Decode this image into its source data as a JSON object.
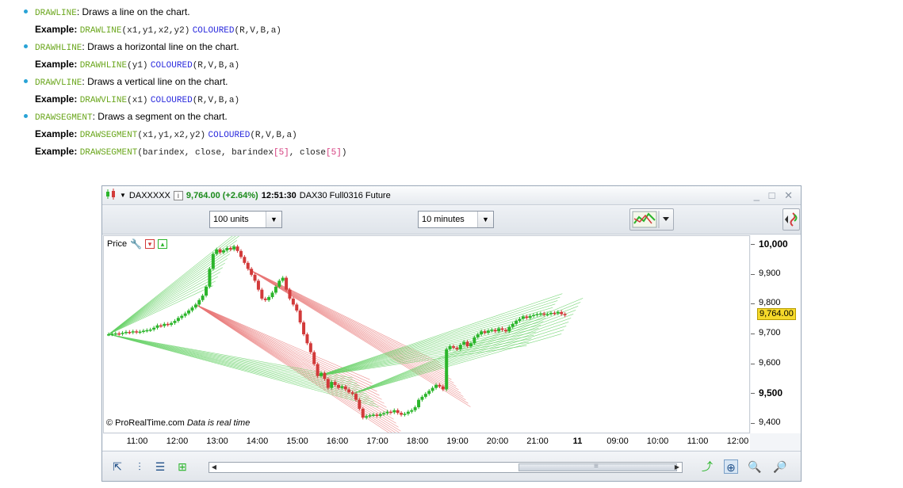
{
  "doc": {
    "items": [
      {
        "keyword": "DRAWLINE",
        "description": ": Draws a line on the chart.",
        "examples": [
          {
            "label": "Example:",
            "fn": "DRAWLINE",
            "args": "(x1,y1,x2,y2)",
            "color_fn": "COLOURED",
            "color_args": "(R,V,B,a)"
          }
        ]
      },
      {
        "keyword": "DRAWHLINE",
        "description": ": Draws a horizontal line on the chart.",
        "examples": [
          {
            "label": "Example:",
            "fn": "DRAWHLINE",
            "args": "(y1)",
            "color_fn": "COLOURED",
            "color_args": "(R,V,B,a)"
          }
        ]
      },
      {
        "keyword": "DRAWVLINE",
        "description": ": Draws a vertical line on the chart.",
        "examples": [
          {
            "label": "Example:",
            "fn": "DRAWVLINE",
            "args": "(x1)",
            "color_fn": "COLOURED",
            "color_args": "(R,V,B,a)"
          }
        ]
      },
      {
        "keyword": "DRAWSEGMENT",
        "description": ": Draws a segment on the chart.",
        "examples": [
          {
            "label": "Example:",
            "fn": "DRAWSEGMENT",
            "args": "(x1,y1,x2,y2)",
            "color_fn": "COLOURED",
            "color_args": "(R,V,B,a)"
          }
        ],
        "example2": {
          "label": "Example:",
          "fn": "DRAWSEGMENT",
          "a1": "(barindex, close, barindex",
          "i1": "[5]",
          "a2": ", close",
          "i2": "[5]",
          "a3": ")"
        }
      }
    ]
  },
  "window": {
    "instrument": "DAXXXXX",
    "info_icon": "i",
    "price": "9,764.00 (+2.64%)",
    "time": "12:51:30",
    "description": "DAX30 Full0316 Future",
    "controls": "_ □ ✕"
  },
  "toolbar": {
    "units": "100 units",
    "timeframe": "10 minutes",
    "dropdown_arrow": "▼"
  },
  "chart": {
    "panel_label": "Price",
    "copyright": "© ProRealTime.com",
    "copyright_note": "Data is real time",
    "y_ticks": [
      {
        "label": "10,000",
        "value": 10000,
        "bold": true
      },
      {
        "label": "9,900",
        "value": 9900,
        "bold": false
      },
      {
        "label": "9,800",
        "value": 9800,
        "bold": false
      },
      {
        "label": "9,700",
        "value": 9700,
        "bold": false
      },
      {
        "label": "9,600",
        "value": 9600,
        "bold": false
      },
      {
        "label": "9,500",
        "value": 9500,
        "bold": true
      },
      {
        "label": "9,400",
        "value": 9400,
        "bold": false
      }
    ],
    "current_price_label": "9,764.00",
    "x_ticks": [
      {
        "label": "11:00",
        "bold": false
      },
      {
        "label": "12:00",
        "bold": false
      },
      {
        "label": "13:00",
        "bold": false
      },
      {
        "label": "14:00",
        "bold": false
      },
      {
        "label": "15:00",
        "bold": false
      },
      {
        "label": "16:00",
        "bold": false
      },
      {
        "label": "17:00",
        "bold": false
      },
      {
        "label": "18:00",
        "bold": false
      },
      {
        "label": "19:00",
        "bold": false
      },
      {
        "label": "20:00",
        "bold": false
      },
      {
        "label": "21:00",
        "bold": false
      },
      {
        "label": "11",
        "bold": true
      },
      {
        "label": "09:00",
        "bold": false
      },
      {
        "label": "10:00",
        "bold": false
      },
      {
        "label": "11:00",
        "bold": false
      },
      {
        "label": "12:00",
        "bold": false
      }
    ],
    "colors": {
      "up": "#2bb52b",
      "down": "#d23a3a",
      "green_lines": "#5fcf5f",
      "red_lines": "#e87474",
      "price_tag": "#f5d92a"
    },
    "closes": [
      9700,
      9702,
      9703,
      9701,
      9705,
      9708,
      9706,
      9710,
      9707,
      9709,
      9712,
      9714,
      9716,
      9722,
      9730,
      9728,
      9735,
      9732,
      9738,
      9745,
      9755,
      9762,
      9770,
      9780,
      9790,
      9800,
      9815,
      9830,
      9860,
      9920,
      9970,
      9985,
      9975,
      9982,
      9990,
      9985,
      9995,
      9980,
      9960,
      9940,
      9920,
      9900,
      9880,
      9850,
      9820,
      9815,
      9825,
      9840,
      9860,
      9880,
      9890,
      9850,
      9820,
      9800,
      9780,
      9740,
      9700,
      9670,
      9640,
      9600,
      9560,
      9570,
      9550,
      9520,
      9540,
      9530,
      9520,
      9525,
      9515,
      9505,
      9500,
      9480,
      9450,
      9420,
      9425,
      9428,
      9430,
      9426,
      9432,
      9435,
      9440,
      9438,
      9445,
      9436,
      9430,
      9433,
      9440,
      9445,
      9455,
      9480,
      9490,
      9500,
      9510,
      9520,
      9530,
      9525,
      9515,
      9650,
      9660,
      9655,
      9650,
      9665,
      9675,
      9660,
      9670,
      9690,
      9700,
      9710,
      9705,
      9712,
      9715,
      9710,
      9720,
      9715,
      9710,
      9725,
      9735,
      9745,
      9752,
      9760,
      9755,
      9762,
      9765,
      9768,
      9770,
      9766,
      9768,
      9772,
      9770,
      9775,
      9768,
      9764
    ]
  },
  "bottombar": {
    "scroll_grip": "≡"
  }
}
